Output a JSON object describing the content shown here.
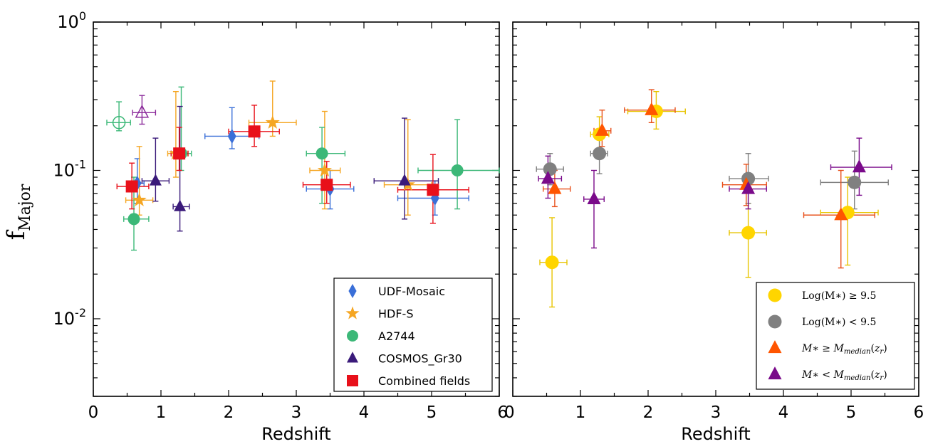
{
  "figure": {
    "ylabel": "f",
    "ylabel_sub": "Major"
  },
  "chart_data": [
    {
      "type": "scatter",
      "xlabel": "Redshift",
      "ylabel": "fMajor",
      "xlim": [
        0,
        6
      ],
      "ylim": [
        0.003,
        1
      ],
      "yscale": "log",
      "x_ticks": [
        "0",
        "1",
        "2",
        "3",
        "4",
        "5",
        "6"
      ],
      "y_ticks": [
        {
          "base": "10",
          "exp": "0",
          "value": 1
        },
        {
          "base": "10",
          "exp": "-1",
          "value": 0.1
        },
        {
          "base": "10",
          "exp": "-2",
          "value": 0.01
        }
      ],
      "legend_position": "lower-right",
      "series": [
        {
          "name": "UDF-Mosaic",
          "marker": "diamond",
          "color": "#3a6fd8",
          "points": [
            {
              "x": 0.65,
              "y": 0.082,
              "xerr": [
                0.65,
                0.75
              ],
              "yerr": [
                0.06,
                0.12
              ]
            },
            {
              "x": 2.05,
              "y": 0.17,
              "xerr": [
                1.65,
                2.45
              ],
              "yerr": [
                0.14,
                0.265
              ]
            },
            {
              "x": 3.5,
              "y": 0.075,
              "xerr": [
                3.15,
                3.85
              ],
              "yerr": [
                0.055,
                0.1
              ]
            },
            {
              "x": 5.05,
              "y": 0.065,
              "xerr": [
                4.5,
                5.55
              ],
              "yerr": [
                0.05,
                0.085
              ]
            }
          ]
        },
        {
          "name": "HDF-S",
          "marker": "star",
          "color": "#f5a623",
          "points": [
            {
              "x": 0.68,
              "y": 0.063,
              "xerr": [
                0.48,
                0.88
              ],
              "yerr": [
                0.05,
                0.145
              ]
            },
            {
              "x": 1.22,
              "y": 0.13,
              "xerr": [
                1.1,
                1.4
              ],
              "yerr": [
                0.09,
                0.34
              ]
            },
            {
              "x": 2.65,
              "y": 0.21,
              "xerr": [
                2.3,
                3.0
              ],
              "yerr": [
                0.17,
                0.4
              ]
            },
            {
              "x": 3.42,
              "y": 0.1,
              "xerr": [
                3.2,
                3.65
              ],
              "yerr": [
                0.055,
                0.25
              ]
            },
            {
              "x": 4.65,
              "y": 0.08,
              "xerr": [
                4.3,
                5.0
              ],
              "yerr": [
                0.05,
                0.22
              ]
            }
          ]
        },
        {
          "name": "A2744",
          "marker": "circle",
          "color": "#3cb878",
          "points": [
            {
              "x": 0.38,
              "y": 0.21,
              "xerr": [
                0.2,
                0.55
              ],
              "yerr": [
                0.185,
                0.29
              ],
              "open": true
            },
            {
              "x": 0.6,
              "y": 0.047,
              "xerr": [
                0.45,
                0.82
              ],
              "yerr": [
                0.029,
                0.09
              ]
            },
            {
              "x": 1.3,
              "y": 0.13,
              "xerr": [
                1.15,
                1.45
              ],
              "yerr": [
                0.1,
                0.365
              ]
            },
            {
              "x": 3.38,
              "y": 0.13,
              "xerr": [
                3.15,
                3.72
              ],
              "yerr": [
                0.06,
                0.195
              ]
            },
            {
              "x": 5.38,
              "y": 0.1,
              "xerr": [
                4.8,
                6.0
              ],
              "yerr": [
                0.055,
                0.22
              ]
            }
          ]
        },
        {
          "name": "COSMOS_Gr30",
          "marker": "triangle",
          "color": "#3a1a7a",
          "points": [
            {
              "x": 0.72,
              "y": 0.245,
              "xerr": [
                0.58,
                0.92
              ],
              "yerr": [
                0.205,
                0.32
              ],
              "open": true,
              "color": "#8b2a9a"
            },
            {
              "x": 0.92,
              "y": 0.085,
              "xerr": [
                0.72,
                1.12
              ],
              "yerr": [
                0.062,
                0.165
              ]
            },
            {
              "x": 1.28,
              "y": 0.057,
              "xerr": [
                1.18,
                1.42
              ],
              "yerr": [
                0.039,
                0.27
              ]
            },
            {
              "x": 4.6,
              "y": 0.085,
              "xerr": [
                4.15,
                5.1
              ],
              "yerr": [
                0.047,
                0.225
              ]
            }
          ]
        },
        {
          "name": "Combined fields",
          "marker": "square",
          "color": "#e8101a",
          "points": [
            {
              "x": 0.57,
              "y": 0.078,
              "xerr": [
                0.35,
                0.82
              ],
              "yerr": [
                0.055,
                0.112
              ]
            },
            {
              "x": 1.27,
              "y": 0.13,
              "xerr": [
                1.15,
                1.4
              ],
              "yerr": [
                0.1,
                0.195
              ]
            },
            {
              "x": 2.38,
              "y": 0.183,
              "xerr": [
                2.0,
                2.75
              ],
              "yerr": [
                0.145,
                0.275
              ]
            },
            {
              "x": 3.45,
              "y": 0.08,
              "xerr": [
                3.1,
                3.8
              ],
              "yerr": [
                0.06,
                0.115
              ]
            },
            {
              "x": 5.02,
              "y": 0.074,
              "xerr": [
                4.5,
                5.55
              ],
              "yerr": [
                0.044,
                0.128
              ]
            }
          ]
        }
      ]
    },
    {
      "type": "scatter",
      "xlabel": "Redshift",
      "xlim": [
        0,
        6
      ],
      "ylim": [
        0.003,
        1
      ],
      "yscale": "log",
      "x_ticks": [
        "0",
        "1",
        "2",
        "3",
        "4",
        "5",
        "6"
      ],
      "legend_position": "lower-right",
      "series": [
        {
          "name": "Log(M∗) ≥ 9.5",
          "marker": "circle",
          "color": "#ffd500",
          "errcolor": "#e8c400",
          "points": [
            {
              "x": 0.58,
              "y": 0.024,
              "xerr": [
                0.4,
                0.8
              ],
              "yerr": [
                0.012,
                0.048
              ]
            },
            {
              "x": 1.28,
              "y": 0.175,
              "xerr": [
                1.15,
                1.42
              ],
              "yerr": [
                0.13,
                0.23
              ]
            },
            {
              "x": 2.12,
              "y": 0.25,
              "xerr": [
                1.7,
                2.55
              ],
              "yerr": [
                0.19,
                0.34
              ]
            },
            {
              "x": 3.48,
              "y": 0.038,
              "xerr": [
                3.2,
                3.75
              ],
              "yerr": [
                0.019,
                0.06
              ]
            },
            {
              "x": 4.95,
              "y": 0.052,
              "xerr": [
                4.55,
                5.4
              ],
              "yerr": [
                0.023,
                0.09
              ]
            }
          ]
        },
        {
          "name": "Log(M∗) < 9.5",
          "marker": "circle",
          "color": "#808080",
          "errcolor": "#808080",
          "points": [
            {
              "x": 0.55,
              "y": 0.102,
              "xerr": [
                0.35,
                0.75
              ],
              "yerr": [
                0.08,
                0.13
              ]
            },
            {
              "x": 1.28,
              "y": 0.13,
              "xerr": [
                1.15,
                1.4
              ],
              "yerr": [
                0.095,
                0.175
              ]
            },
            {
              "x": 3.48,
              "y": 0.088,
              "xerr": [
                3.2,
                3.78
              ],
              "yerr": [
                0.06,
                0.13
              ]
            },
            {
              "x": 5.05,
              "y": 0.083,
              "xerr": [
                4.55,
                5.55
              ],
              "yerr": [
                0.055,
                0.135
              ]
            }
          ]
        },
        {
          "name": "M∗ ≥ Mmedian(zr)",
          "marker": "triangle",
          "color": "#ff5500",
          "errcolor": "#e8501a",
          "points": [
            {
              "x": 0.62,
              "y": 0.075,
              "xerr": [
                0.45,
                0.85
              ],
              "yerr": [
                0.057,
                0.1
              ]
            },
            {
              "x": 1.32,
              "y": 0.185,
              "xerr": [
                1.2,
                1.45
              ],
              "yerr": [
                0.145,
                0.255
              ]
            },
            {
              "x": 2.05,
              "y": 0.255,
              "xerr": [
                1.65,
                2.4
              ],
              "yerr": [
                0.21,
                0.35
              ]
            },
            {
              "x": 3.45,
              "y": 0.08,
              "xerr": [
                3.1,
                3.75
              ],
              "yerr": [
                0.058,
                0.11
              ]
            },
            {
              "x": 4.85,
              "y": 0.05,
              "xerr": [
                4.3,
                5.35
              ],
              "yerr": [
                0.022,
                0.1
              ]
            }
          ]
        },
        {
          "name": "M∗ < Mmedian(zr)",
          "marker": "triangle",
          "color": "#7a0a8a",
          "errcolor": "#7a0a8a",
          "points": [
            {
              "x": 0.52,
              "y": 0.088,
              "xerr": [
                0.38,
                0.72
              ],
              "yerr": [
                0.065,
                0.125
              ]
            },
            {
              "x": 1.2,
              "y": 0.064,
              "xerr": [
                1.05,
                1.35
              ],
              "yerr": [
                0.03,
                0.1
              ]
            },
            {
              "x": 3.48,
              "y": 0.075,
              "xerr": [
                3.2,
                3.75
              ],
              "yerr": [
                0.055,
                0.095
              ]
            },
            {
              "x": 5.12,
              "y": 0.105,
              "xerr": [
                4.7,
                5.6
              ],
              "yerr": [
                0.068,
                0.165
              ]
            }
          ]
        }
      ]
    }
  ]
}
